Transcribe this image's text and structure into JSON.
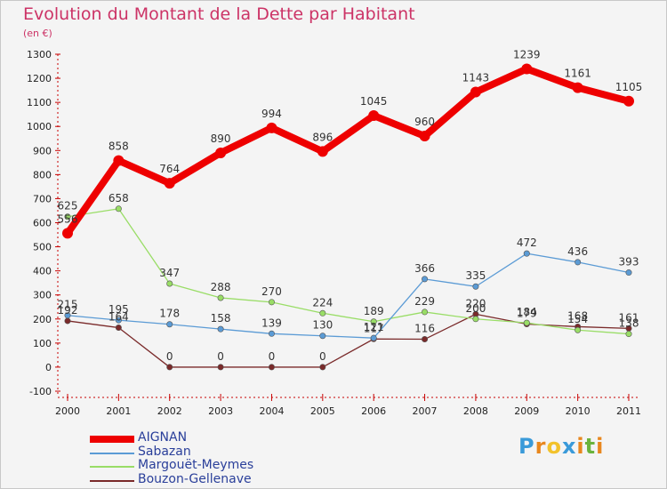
{
  "title": "Evolution du Montant de la Dette par Habitant",
  "unit": "(en €)",
  "logo": {
    "text": "Proxiti",
    "letters": [
      "P",
      "r",
      "o",
      "x",
      "i",
      "t",
      "i"
    ],
    "colors": [
      "#3a9ad9",
      "#e8871e",
      "#f2c22b",
      "#3a9ad9",
      "#e8871e",
      "#6ab33c",
      "#e8871e"
    ]
  },
  "chart_data": {
    "type": "line",
    "title": "Evolution du Montant de la Dette par Habitant",
    "ylabel": "(en €)",
    "xlabel": "",
    "x": [
      "2000",
      "2001",
      "2002",
      "2003",
      "2004",
      "2005",
      "2006",
      "2007",
      "2008",
      "2009",
      "2010",
      "2011"
    ],
    "ylim": [
      -100,
      1300
    ],
    "yticks": [
      -100,
      0,
      100,
      200,
      300,
      400,
      500,
      600,
      700,
      800,
      900,
      1000,
      1100,
      1200,
      1300
    ],
    "grid": false,
    "legend_position": "bottom-left",
    "series": [
      {
        "name": "AIGNAN",
        "color": "#ee0000",
        "values": [
          556,
          858,
          764,
          890,
          994,
          896,
          1045,
          960,
          1143,
          1239,
          1161,
          1105
        ],
        "labels": [
          "556",
          "858",
          "764",
          "890",
          "994",
          "896",
          "1045",
          "960",
          "1143",
          "1239",
          "1161",
          "1105"
        ]
      },
      {
        "name": "Sabazan",
        "color": "#5b9bd5",
        "values": [
          215,
          195,
          178,
          158,
          139,
          130,
          121,
          366,
          335,
          472,
          436,
          393
        ],
        "labels": [
          "215",
          "195",
          "178",
          "158",
          "139",
          "130",
          "121",
          "366",
          "335",
          "472",
          "436",
          "393"
        ]
      },
      {
        "name": "Margouët-Meymes",
        "color": "#99dd66",
        "values": [
          625,
          658,
          347,
          288,
          270,
          224,
          189,
          229,
          200,
          184,
          154,
          138
        ],
        "labels": [
          "625",
          "658",
          "347",
          "288",
          "270",
          "224",
          "189",
          "229",
          "200",
          "184",
          "154",
          "138"
        ]
      },
      {
        "name": "Bouzon-Gellenave",
        "color": "#7a2a2a",
        "values": [
          192,
          164,
          0,
          0,
          0,
          0,
          117,
          116,
          220,
          179,
          168,
          161
        ],
        "labels": [
          "192",
          "164",
          "0",
          "0",
          "0",
          "0",
          "117",
          "116",
          "220",
          "179",
          "168",
          "161"
        ]
      }
    ]
  }
}
